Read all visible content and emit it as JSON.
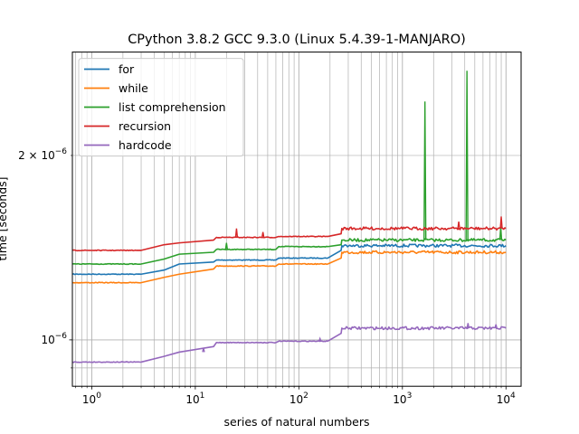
{
  "chart_data": {
    "type": "line",
    "title": "CPython 3.8.2 GCC 9.3.0 (Linux 5.4.39-1-MANJARO)",
    "xlabel": "series of natural numbers",
    "ylabel": "time [seconds]",
    "xscale": "log",
    "yscale": "log",
    "xlim": [
      0.65,
      14000
    ],
    "ylim": [
      8.4e-07,
      2.95e-06
    ],
    "grid": "both, major and minor",
    "legend_position": "upper-left",
    "x_tick_labels": [
      {
        "value": 1,
        "base": "10",
        "exp": "0"
      },
      {
        "value": 10,
        "base": "10",
        "exp": "1"
      },
      {
        "value": 100,
        "base": "10",
        "exp": "2"
      },
      {
        "value": 1000,
        "base": "10",
        "exp": "3"
      },
      {
        "value": 10000,
        "base": "10",
        "exp": "4"
      }
    ],
    "y_tick_labels": [
      {
        "value": 1e-06,
        "coef": "",
        "base": "10",
        "exp": "−6"
      },
      {
        "value": 2e-06,
        "coef": "2 × ",
        "base": "10",
        "exp": "−6"
      }
    ],
    "series": [
      {
        "name": "for",
        "color": "#1f77b4",
        "points": [
          [
            0.65,
            1.28e-06
          ],
          [
            3,
            1.28e-06
          ],
          [
            5,
            1.3e-06
          ],
          [
            7,
            1.33e-06
          ],
          [
            15,
            1.34e-06
          ],
          [
            16,
            1.35e-06
          ],
          [
            60,
            1.35e-06
          ],
          [
            64,
            1.36e-06
          ],
          [
            190,
            1.36e-06
          ],
          [
            256,
            1.4e-06
          ],
          [
            260,
            1.425e-06
          ],
          [
            10000,
            1.425e-06
          ]
        ],
        "spikes": []
      },
      {
        "name": "while",
        "color": "#ff7f0e",
        "points": [
          [
            0.65,
            1.24e-06
          ],
          [
            3,
            1.24e-06
          ],
          [
            5,
            1.265e-06
          ],
          [
            7,
            1.28e-06
          ],
          [
            15,
            1.305e-06
          ],
          [
            16,
            1.32e-06
          ],
          [
            60,
            1.32e-06
          ],
          [
            64,
            1.33e-06
          ],
          [
            190,
            1.33e-06
          ],
          [
            256,
            1.36e-06
          ],
          [
            260,
            1.39e-06
          ],
          [
            10000,
            1.39e-06
          ]
        ],
        "spikes": []
      },
      {
        "name": "list comprehension",
        "color": "#2ca02c",
        "points": [
          [
            0.65,
            1.33e-06
          ],
          [
            3,
            1.33e-06
          ],
          [
            5,
            1.355e-06
          ],
          [
            7,
            1.38e-06
          ],
          [
            15,
            1.39e-06
          ],
          [
            16,
            1.405e-06
          ],
          [
            60,
            1.405e-06
          ],
          [
            64,
            1.42e-06
          ],
          [
            190,
            1.42e-06
          ],
          [
            256,
            1.43e-06
          ],
          [
            260,
            1.455e-06
          ],
          [
            10000,
            1.455e-06
          ]
        ],
        "spikes": [
          [
            20,
            1.44e-06
          ],
          [
            1650,
            2.45e-06
          ],
          [
            4200,
            2.75e-06
          ],
          [
            8900,
            1.53e-06
          ]
        ]
      },
      {
        "name": "recursion",
        "color": "#d62728",
        "points": [
          [
            0.65,
            1.4e-06
          ],
          [
            3,
            1.4e-06
          ],
          [
            5,
            1.43e-06
          ],
          [
            7,
            1.44e-06
          ],
          [
            15,
            1.455e-06
          ],
          [
            16,
            1.47e-06
          ],
          [
            60,
            1.47e-06
          ],
          [
            64,
            1.475e-06
          ],
          [
            190,
            1.475e-06
          ],
          [
            256,
            1.49e-06
          ],
          [
            260,
            1.52e-06
          ],
          [
            10000,
            1.52e-06
          ]
        ],
        "spikes": [
          [
            25,
            1.52e-06
          ],
          [
            45,
            1.5e-06
          ],
          [
            3500,
            1.56e-06
          ],
          [
            9000,
            1.59e-06
          ]
        ]
      },
      {
        "name": "hardcode",
        "color": "#9467bd",
        "points": [
          [
            0.65,
            9.2e-07
          ],
          [
            3,
            9.2e-07
          ],
          [
            5,
            9.4e-07
          ],
          [
            7,
            9.55e-07
          ],
          [
            15,
            9.75e-07
          ],
          [
            16,
            9.9e-07
          ],
          [
            60,
            9.9e-07
          ],
          [
            64,
            9.95e-07
          ],
          [
            190,
            9.95e-07
          ],
          [
            256,
            1.025e-06
          ],
          [
            260,
            1.045e-06
          ],
          [
            10000,
            1.045e-06
          ]
        ],
        "spikes": [
          [
            12,
            9.7e-07
          ],
          [
            160,
            1.005e-06
          ],
          [
            4300,
            1.065e-06
          ],
          [
            8000,
            1.06e-06
          ]
        ]
      }
    ]
  }
}
